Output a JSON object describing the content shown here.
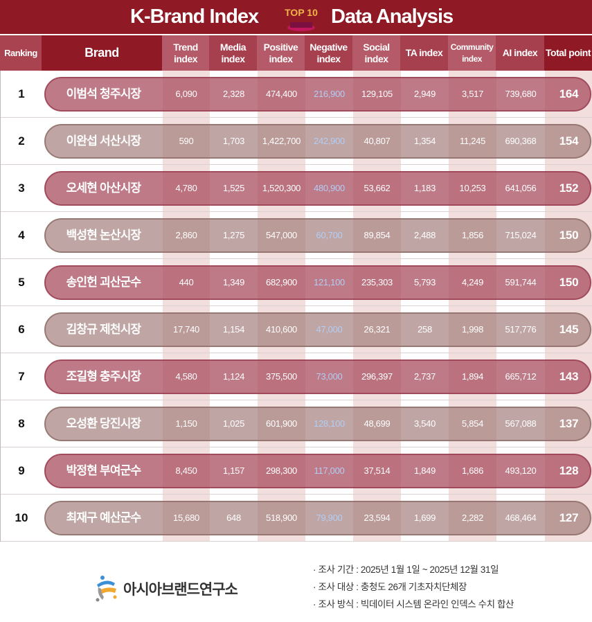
{
  "title": {
    "left": "K-Brand Index",
    "badge": "TOP 10",
    "right": "Data Analysis"
  },
  "colors": {
    "header_bg": "#8f1a26",
    "odd_pill": "#a54658",
    "even_pill": "#a07a76",
    "negative_text": "#b3cdf5",
    "stripe": "#f3dede"
  },
  "columns": [
    "Ranking",
    "Brand",
    "Trend index",
    "Media index",
    "Positive index",
    "Negative index",
    "Social index",
    "TA index",
    "Community index",
    "AI index",
    "Total point"
  ],
  "rows": [
    {
      "rank": "1",
      "brand": "이범석 청주시장",
      "trend": "6,090",
      "media": "2,328",
      "positive": "474,400",
      "negative": "216,900",
      "social": "129,105",
      "ta": "2,949",
      "community": "3,517",
      "ai": "739,680",
      "total": "164"
    },
    {
      "rank": "2",
      "brand": "이완섭 서산시장",
      "trend": "590",
      "media": "1,703",
      "positive": "1,422,700",
      "negative": "242,900",
      "social": "40,807",
      "ta": "1,354",
      "community": "11,245",
      "ai": "690,368",
      "total": "154"
    },
    {
      "rank": "3",
      "brand": "오세현 아산시장",
      "trend": "4,780",
      "media": "1,525",
      "positive": "1,520,300",
      "negative": "480,900",
      "social": "53,662",
      "ta": "1,183",
      "community": "10,253",
      "ai": "641,056",
      "total": "152"
    },
    {
      "rank": "4",
      "brand": "백성현 논산시장",
      "trend": "2,860",
      "media": "1,275",
      "positive": "547,000",
      "negative": "60,700",
      "social": "89,854",
      "ta": "2,488",
      "community": "1,856",
      "ai": "715,024",
      "total": "150"
    },
    {
      "rank": "5",
      "brand": "송인헌 괴산군수",
      "trend": "440",
      "media": "1,349",
      "positive": "682,900",
      "negative": "121,100",
      "social": "235,303",
      "ta": "5,793",
      "community": "4,249",
      "ai": "591,744",
      "total": "150"
    },
    {
      "rank": "6",
      "brand": "김창규 제천시장",
      "trend": "17,740",
      "media": "1,154",
      "positive": "410,600",
      "negative": "47,000",
      "social": "26,321",
      "ta": "258",
      "community": "1,998",
      "ai": "517,776",
      "total": "145"
    },
    {
      "rank": "7",
      "brand": "조길형 충주시장",
      "trend": "4,580",
      "media": "1,124",
      "positive": "375,500",
      "negative": "73,000",
      "social": "296,397",
      "ta": "2,737",
      "community": "1,894",
      "ai": "665,712",
      "total": "143"
    },
    {
      "rank": "8",
      "brand": "오성환 당진시장",
      "trend": "1,150",
      "media": "1,025",
      "positive": "601,900",
      "negative": "128,100",
      "social": "48,699",
      "ta": "3,540",
      "community": "5,854",
      "ai": "567,088",
      "total": "137"
    },
    {
      "rank": "9",
      "brand": "박정현 부여군수",
      "trend": "8,450",
      "media": "1,157",
      "positive": "298,300",
      "negative": "117,000",
      "social": "37,514",
      "ta": "1,849",
      "community": "1,686",
      "ai": "493,120",
      "total": "128"
    },
    {
      "rank": "10",
      "brand": "최재구 예산군수",
      "trend": "15,680",
      "media": "648",
      "positive": "518,900",
      "negative": "79,900",
      "social": "23,594",
      "ta": "1,699",
      "community": "2,282",
      "ai": "468,464",
      "total": "127"
    }
  ],
  "footer": {
    "logo_text": "아시아브랜드연구소",
    "notes": [
      "· 조사 기간 : 2025년 1월 1일 ~ 2025년 12월 31일",
      "· 조사 대상 : 충청도 26개 기초자치단체장",
      "· 조사 방식 : 빅데이터 시스템 온라인 인덱스 수치 합산"
    ]
  }
}
